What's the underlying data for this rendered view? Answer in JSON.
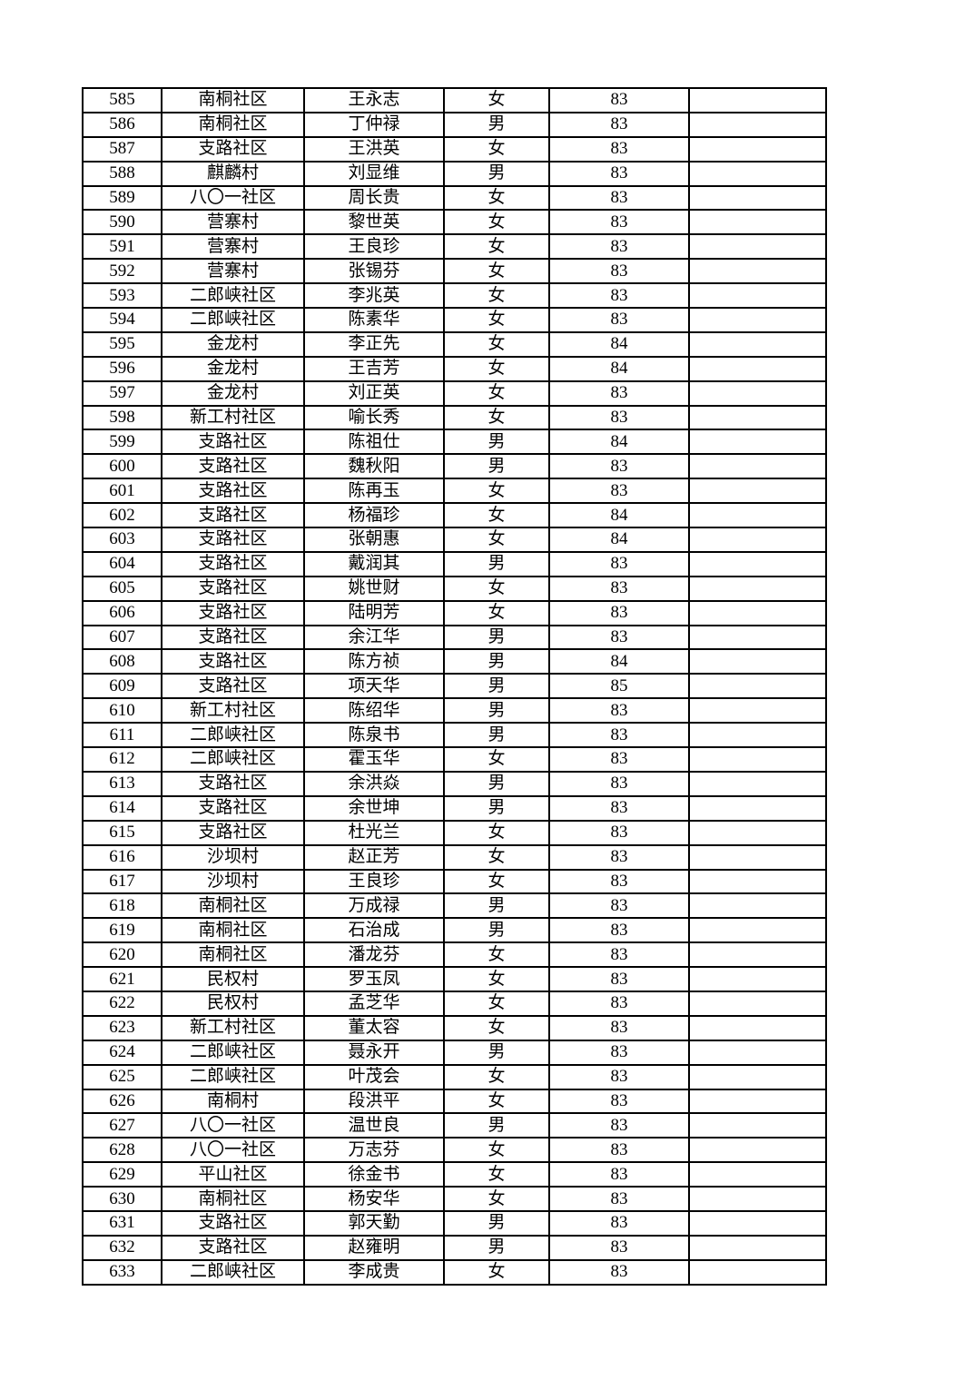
{
  "rows": [
    [
      "585",
      "南桐社区",
      "王永志",
      "女",
      "83",
      ""
    ],
    [
      "586",
      "南桐社区",
      "丁仲禄",
      "男",
      "83",
      ""
    ],
    [
      "587",
      "支路社区",
      "王洪英",
      "女",
      "83",
      ""
    ],
    [
      "588",
      "麒麟村",
      "刘显维",
      "男",
      "83",
      ""
    ],
    [
      "589",
      "八〇一社区",
      "周长贵",
      "女",
      "83",
      ""
    ],
    [
      "590",
      "营寨村",
      "黎世英",
      "女",
      "83",
      ""
    ],
    [
      "591",
      "营寨村",
      "王良珍",
      "女",
      "83",
      ""
    ],
    [
      "592",
      "营寨村",
      "张锡芬",
      "女",
      "83",
      ""
    ],
    [
      "593",
      "二郎峡社区",
      "李兆英",
      "女",
      "83",
      ""
    ],
    [
      "594",
      "二郎峡社区",
      "陈素华",
      "女",
      "83",
      ""
    ],
    [
      "595",
      "金龙村",
      "李正先",
      "女",
      "84",
      ""
    ],
    [
      "596",
      "金龙村",
      "王吉芳",
      "女",
      "84",
      ""
    ],
    [
      "597",
      "金龙村",
      "刘正英",
      "女",
      "83",
      ""
    ],
    [
      "598",
      "新工村社区",
      "喻长秀",
      "女",
      "83",
      ""
    ],
    [
      "599",
      "支路社区",
      "陈祖仕",
      "男",
      "84",
      ""
    ],
    [
      "600",
      "支路社区",
      "魏秋阳",
      "男",
      "83",
      ""
    ],
    [
      "601",
      "支路社区",
      "陈再玉",
      "女",
      "83",
      ""
    ],
    [
      "602",
      "支路社区",
      "杨福珍",
      "女",
      "84",
      ""
    ],
    [
      "603",
      "支路社区",
      "张朝惠",
      "女",
      "84",
      ""
    ],
    [
      "604",
      "支路社区",
      "戴润其",
      "男",
      "83",
      ""
    ],
    [
      "605",
      "支路社区",
      "姚世财",
      "女",
      "83",
      ""
    ],
    [
      "606",
      "支路社区",
      "陆明芳",
      "女",
      "83",
      ""
    ],
    [
      "607",
      "支路社区",
      "余江华",
      "男",
      "83",
      ""
    ],
    [
      "608",
      "支路社区",
      "陈方祯",
      "男",
      "84",
      ""
    ],
    [
      "609",
      "支路社区",
      "项天华",
      "男",
      "85",
      ""
    ],
    [
      "610",
      "新工村社区",
      "陈绍华",
      "男",
      "83",
      ""
    ],
    [
      "611",
      "二郎峡社区",
      "陈泉书",
      "男",
      "83",
      ""
    ],
    [
      "612",
      "二郎峡社区",
      "霍玉华",
      "女",
      "83",
      ""
    ],
    [
      "613",
      "支路社区",
      "余洪焱",
      "男",
      "83",
      ""
    ],
    [
      "614",
      "支路社区",
      "余世坤",
      "男",
      "83",
      ""
    ],
    [
      "615",
      "支路社区",
      "杜光兰",
      "女",
      "83",
      ""
    ],
    [
      "616",
      "沙坝村",
      "赵正芳",
      "女",
      "83",
      ""
    ],
    [
      "617",
      "沙坝村",
      "王良珍",
      "女",
      "83",
      ""
    ],
    [
      "618",
      "南桐社区",
      "万成禄",
      "男",
      "83",
      ""
    ],
    [
      "619",
      "南桐社区",
      "石治成",
      "男",
      "83",
      ""
    ],
    [
      "620",
      "南桐社区",
      "潘龙芬",
      "女",
      "83",
      ""
    ],
    [
      "621",
      "民权村",
      "罗玉凤",
      "女",
      "83",
      ""
    ],
    [
      "622",
      "民权村",
      "孟芝华",
      "女",
      "83",
      ""
    ],
    [
      "623",
      "新工村社区",
      "董太容",
      "女",
      "83",
      ""
    ],
    [
      "624",
      "二郎峡社区",
      "聂永开",
      "男",
      "83",
      ""
    ],
    [
      "625",
      "二郎峡社区",
      "叶茂会",
      "女",
      "83",
      ""
    ],
    [
      "626",
      "南桐村",
      "段洪平",
      "女",
      "83",
      ""
    ],
    [
      "627",
      "八〇一社区",
      "温世良",
      "男",
      "83",
      ""
    ],
    [
      "628",
      "八〇一社区",
      "万志芬",
      "女",
      "83",
      ""
    ],
    [
      "629",
      "平山社区",
      "徐金书",
      "女",
      "83",
      ""
    ],
    [
      "630",
      "南桐社区",
      "杨安华",
      "女",
      "83",
      ""
    ],
    [
      "631",
      "支路社区",
      "郭天勤",
      "男",
      "83",
      ""
    ],
    [
      "632",
      "支路社区",
      "赵雍明",
      "男",
      "83",
      ""
    ],
    [
      "633",
      "二郎峡社区",
      "李成贵",
      "女",
      "83",
      ""
    ]
  ]
}
